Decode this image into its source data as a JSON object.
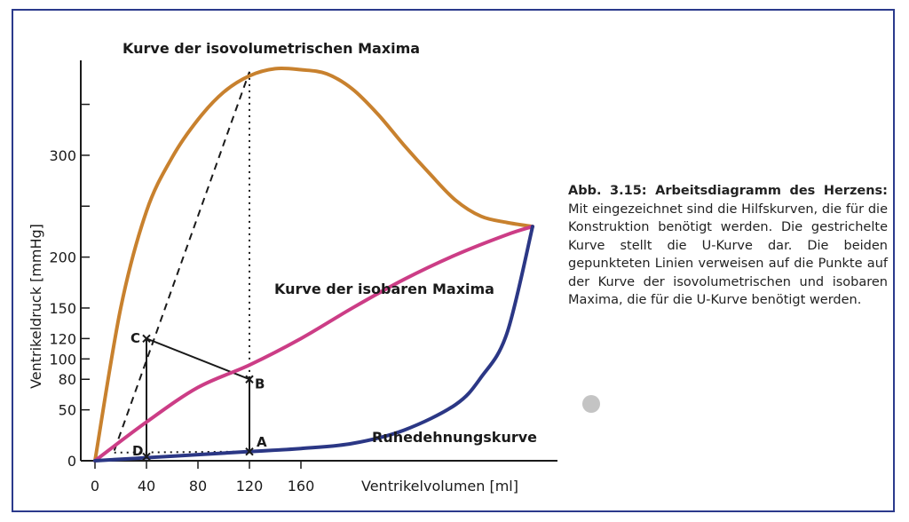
{
  "chart_data": {
    "type": "line",
    "title": "",
    "xlabel": "Ventrikelvolumen [ml]",
    "ylabel": "Ventrikeldruck [mmHg]",
    "x_ticks": [
      "0",
      "40",
      "80",
      "120",
      "160"
    ],
    "y_ticks": [
      "0",
      "50",
      "80",
      "100",
      "120",
      "150",
      "200",
      "300"
    ],
    "xlim": [
      0,
      340
    ],
    "ylim": [
      0,
      390
    ],
    "series": [
      {
        "name": "Kurve der isovolumetrischen Maxima",
        "color": "#c8812e",
        "x": [
          0,
          20,
          40,
          60,
          80,
          100,
          120,
          140,
          160,
          180,
          200,
          220,
          240,
          260,
          280,
          300,
          320,
          340
        ],
        "y": [
          0,
          150,
          245,
          298,
          335,
          362,
          378,
          385,
          384,
          380,
          365,
          340,
          310,
          282,
          256,
          240,
          234,
          230
        ]
      },
      {
        "name": "Kurve der isobaren Maxima",
        "color": "#cc3d86",
        "x": [
          0,
          40,
          80,
          120,
          160,
          200,
          240,
          280,
          320,
          340
        ],
        "y": [
          0,
          38,
          72,
          94,
          120,
          150,
          178,
          202,
          222,
          230
        ]
      },
      {
        "name": "Ruhedehnungskurve",
        "color": "#2b3785",
        "x": [
          0,
          40,
          80,
          120,
          160,
          200,
          240,
          280,
          300,
          320,
          340
        ],
        "y": [
          0,
          3,
          6,
          9,
          12,
          17,
          30,
          55,
          82,
          125,
          230
        ]
      }
    ],
    "points": [
      {
        "label": "A",
        "x": 120,
        "y": 9
      },
      {
        "label": "B",
        "x": 120,
        "y": 80
      },
      {
        "label": "C",
        "x": 40,
        "y": 120
      },
      {
        "label": "D",
        "x": 40,
        "y": 4
      }
    ]
  },
  "caption": {
    "title": "Abb. 3.15: Arbeitsdiagramm des Herzens:",
    "body": "Mit eingezeichnet sind die Hilfskurven, die für die Konstruktion benötigt werden. Die gestrichelte Kurve stellt die U-Kurve dar. Die beiden gepunkteten Linien verweisen auf die Punkte auf der Kurve der isovolumetrischen und isobaren Maxima, die für die U-Kurve benötigt werden."
  }
}
